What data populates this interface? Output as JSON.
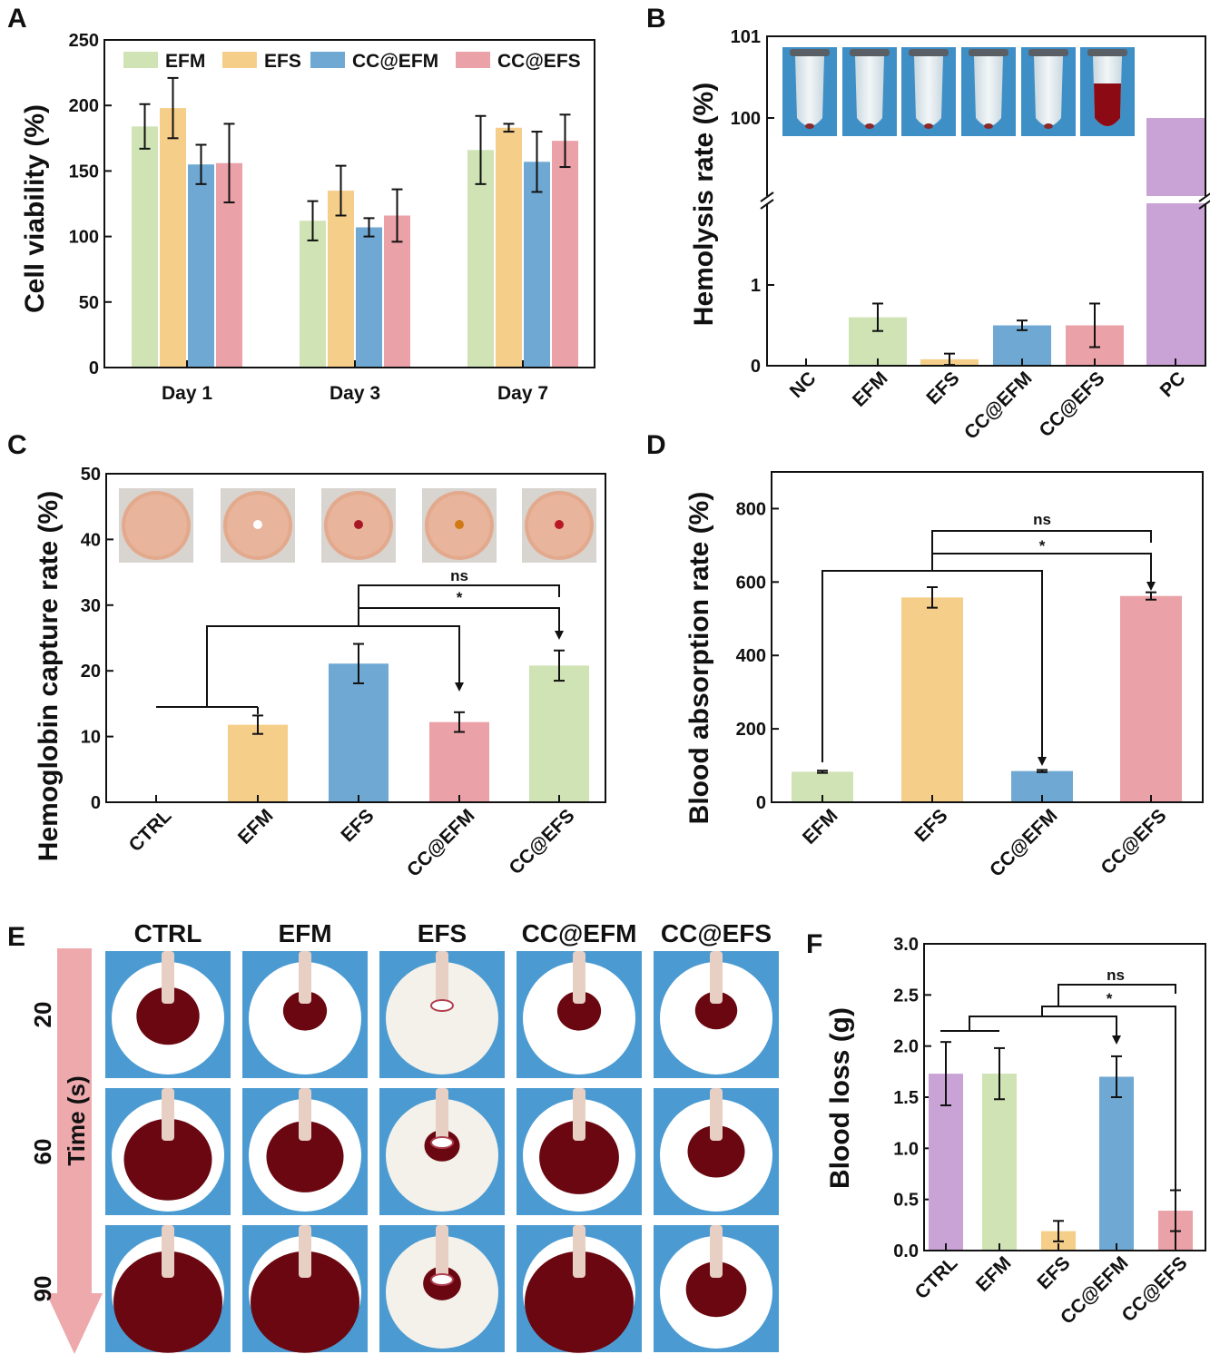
{
  "chart_data": [
    {
      "id": "A",
      "panel_label": "A",
      "type": "bar",
      "ylabel": "Cell viability (%)",
      "ylim": [
        0,
        250
      ],
      "yticks": [
        0,
        50,
        100,
        150,
        200,
        250
      ],
      "categories": [
        "Day 1",
        "Day 3",
        "Day 7"
      ],
      "series": [
        {
          "name": "EFM",
          "color": "#cfe3b4",
          "values": [
            184,
            112,
            166
          ],
          "errors": [
            17,
            15,
            26
          ]
        },
        {
          "name": "EFS",
          "color": "#f5ce8a",
          "values": [
            198,
            135,
            183
          ],
          "errors": [
            23,
            19,
            3
          ]
        },
        {
          "name": "CC@EFM",
          "color": "#6fa9d3",
          "values": [
            155,
            107,
            157
          ],
          "errors": [
            15,
            7,
            23
          ]
        },
        {
          "name": "CC@EFS",
          "color": "#eba1a8",
          "values": [
            156,
            116,
            173
          ],
          "errors": [
            30,
            20,
            20
          ]
        }
      ],
      "legend_position": "top"
    },
    {
      "id": "B",
      "panel_label": "B",
      "type": "bar",
      "ylabel": "Hemolysis rate (%)",
      "y_axis_break": true,
      "yticks": [
        "0",
        "1",
        "100",
        "101"
      ],
      "categories": [
        "NC",
        "EFM",
        "EFS",
        "CC@EFM",
        "CC@EFS",
        "PC"
      ],
      "colors": [
        "#cfe3b4",
        "#cfe3b4",
        "#f5ce8a",
        "#6fa9d3",
        "#eba1a8",
        "#c9a3d6"
      ],
      "values": [
        0,
        0.6,
        0.08,
        0.5,
        0.5,
        100
      ],
      "errors": [
        0,
        0.17,
        0.07,
        0.06,
        0.27,
        0
      ],
      "inset": "photos of centrifuge tubes for each group; PC tube filled with red lysed blood"
    },
    {
      "id": "C",
      "panel_label": "C",
      "type": "bar",
      "ylabel": "Hemoglobin capture rate (%)",
      "ylim": [
        0,
        50
      ],
      "yticks": [
        0,
        10,
        20,
        30,
        40,
        50
      ],
      "categories": [
        "CTRL",
        "EFM",
        "EFS",
        "CC@EFM",
        "CC@EFS"
      ],
      "colors": [
        "#ffffff",
        "#f5ce8a",
        "#6fa9d3",
        "#eba1a8",
        "#cfe3b4"
      ],
      "values": [
        0,
        11.8,
        21.1,
        12.2,
        20.8
      ],
      "errors": [
        0,
        1.4,
        3.0,
        1.5,
        2.3
      ],
      "significance": [
        "ns",
        "*"
      ],
      "inset": "photos of hemoglobin plates for each group"
    },
    {
      "id": "D",
      "panel_label": "D",
      "type": "bar",
      "ylabel": "Blood absorption rate (%)",
      "ylim": [
        0,
        900
      ],
      "yticks": [
        0,
        200,
        400,
        600,
        800
      ],
      "categories": [
        "EFM",
        "EFS",
        "CC@EFM",
        "CC@EFS"
      ],
      "colors": [
        "#cfe3b4",
        "#f5ce8a",
        "#6fa9d3",
        "#eba1a8"
      ],
      "values": [
        83,
        558,
        85,
        562
      ],
      "errors": [
        3,
        28,
        3,
        10
      ],
      "significance": [
        "ns",
        "*"
      ]
    },
    {
      "id": "F",
      "panel_label": "F",
      "type": "bar",
      "ylabel": "Blood loss (g)",
      "ylim": [
        0,
        3.0
      ],
      "yticks": [
        "0.0",
        "0.5",
        "1.0",
        "1.5",
        "2.0",
        "2.5",
        "3.0"
      ],
      "categories": [
        "CTRL",
        "EFM",
        "EFS",
        "CC@EFM",
        "CC@EFS"
      ],
      "colors": [
        "#c9a3d6",
        "#cfe3b4",
        "#f5ce8a",
        "#6fa9d3",
        "#eba1a8"
      ],
      "values": [
        1.73,
        1.73,
        0.19,
        1.7,
        0.39
      ],
      "errors": [
        0.31,
        0.25,
        0.1,
        0.2,
        0.2
      ],
      "significance": [
        "ns",
        "*"
      ]
    }
  ],
  "panel_e": {
    "panel_label": "E",
    "columns": [
      "CTRL",
      "EFM",
      "EFS",
      "CC@EFM",
      "CC@EFS"
    ],
    "time_label": "Time (s)",
    "rows": [
      "20",
      "60",
      "90"
    ],
    "stain_scale": [
      [
        0.45,
        0.22,
        0.0,
        0.22,
        0.2
      ],
      [
        0.75,
        0.62,
        0.12,
        0.65,
        0.38
      ],
      [
        1.0,
        1.0,
        0.15,
        1.0,
        0.42
      ]
    ]
  }
}
